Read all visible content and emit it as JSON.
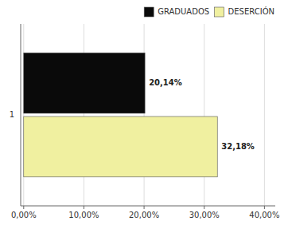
{
  "chart_data": {
    "type": "bar",
    "orientation": "horizontal",
    "categories": [
      "1"
    ],
    "series": [
      {
        "name": "GRADUADOS",
        "color": "#0a0a0a",
        "values": [
          20.14
        ],
        "value_labels": [
          "20,14%"
        ]
      },
      {
        "name": "DESERCIÓN",
        "color": "#f0f0a0",
        "values": [
          32.18
        ],
        "value_labels": [
          "32,18%"
        ]
      }
    ],
    "xlim": [
      -0.5,
      41.8
    ],
    "xticks": [
      {
        "value": 0,
        "label": "0,00%"
      },
      {
        "value": 10,
        "label": "10,00%"
      },
      {
        "value": 20,
        "label": "20,00%"
      },
      {
        "value": 30,
        "label": "30,00%"
      },
      {
        "value": 40,
        "label": "40,00%"
      }
    ],
    "grid": true,
    "legend": "upper right",
    "data_labels": true
  }
}
